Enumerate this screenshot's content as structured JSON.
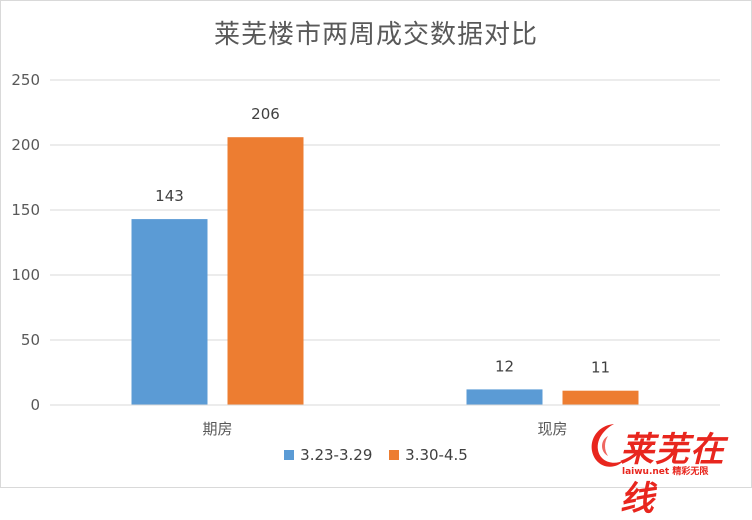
{
  "chart_data": {
    "type": "bar",
    "title": "莱芜楼市两周成交数据对比",
    "categories": [
      "期房",
      "现房"
    ],
    "series": [
      {
        "name": "3.23-3.29",
        "values": [
          143,
          12
        ],
        "color": "#5b9bd5"
      },
      {
        "name": "3.30-4.5",
        "values": [
          206,
          11
        ],
        "color": "#ed7d31"
      }
    ],
    "ylim": [
      0,
      250
    ],
    "yticks": [
      0,
      50,
      100,
      150,
      200,
      250
    ],
    "grid": true,
    "legend": "bottom"
  },
  "watermark": {
    "text": "莱芜在线",
    "sub": "精彩无限",
    "url_text": "laiwu.net"
  }
}
